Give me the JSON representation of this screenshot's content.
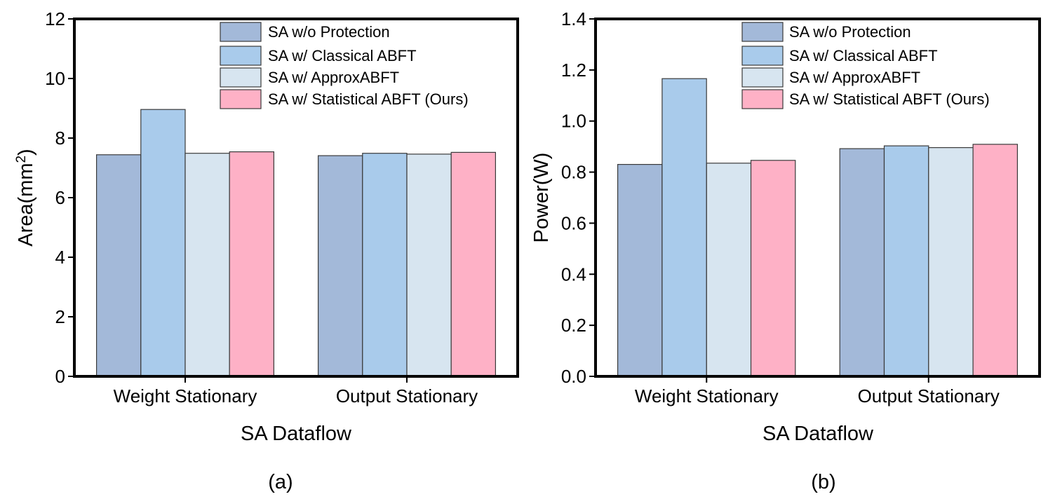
{
  "series_colors": [
    "#a3b9d9",
    "#a9cbeb",
    "#d7e5f0",
    "#feb1c6"
  ],
  "chart_data": [
    {
      "type": "bar",
      "caption": "(a)",
      "categories": [
        "Weight Stationary",
        "Output Stationary"
      ],
      "series": [
        {
          "name": "SA w/o Protection",
          "values": [
            7.44,
            7.41
          ]
        },
        {
          "name": "SA w/ Classical ABFT",
          "values": [
            8.96,
            7.49
          ]
        },
        {
          "name": "SA w/ ApproxABFT",
          "values": [
            7.49,
            7.46
          ]
        },
        {
          "name": "SA w/ Statistical ABFT (Ours)",
          "values": [
            7.54,
            7.52
          ]
        }
      ],
      "xlabel": "SA Dataflow",
      "ylabel": "Area(mm",
      "ylabel_superscript": "2",
      "ylabel_suffix": ")",
      "ylim": [
        0,
        12
      ],
      "yticks": [
        "0",
        "2",
        "4",
        "6",
        "8",
        "10",
        "12"
      ],
      "legend": "top-right"
    },
    {
      "type": "bar",
      "caption": "(b)",
      "categories": [
        "Weight Stationary",
        "Output Stationary"
      ],
      "series": [
        {
          "name": "SA w/o Protection",
          "values": [
            0.83,
            0.892
          ]
        },
        {
          "name": "SA w/ Classical ABFT",
          "values": [
            1.166,
            0.903
          ]
        },
        {
          "name": "SA w/ ApproxABFT",
          "values": [
            0.835,
            0.896
          ]
        },
        {
          "name": "SA w/ Statistical ABFT (Ours)",
          "values": [
            0.846,
            0.909
          ]
        }
      ],
      "xlabel": "SA Dataflow",
      "ylabel": "Power(W)",
      "ylabel_superscript": "",
      "ylabel_suffix": "",
      "ylim": [
        0,
        1.4
      ],
      "yticks": [
        "0.0",
        "0.2",
        "0.4",
        "0.6",
        "0.8",
        "1.0",
        "1.2",
        "1.4"
      ],
      "legend": "top-right"
    }
  ]
}
